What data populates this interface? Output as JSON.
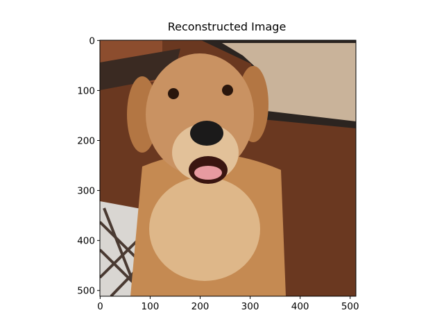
{
  "chart_data": {
    "type": "image",
    "title": "Reconstructed Image",
    "xlim": [
      -0.5,
      511.5
    ],
    "ylim": [
      511.5,
      -0.5
    ],
    "xticks": [
      0,
      100,
      200,
      300,
      400,
      500
    ],
    "yticks": [
      0,
      100,
      200,
      300,
      400,
      500
    ]
  }
}
